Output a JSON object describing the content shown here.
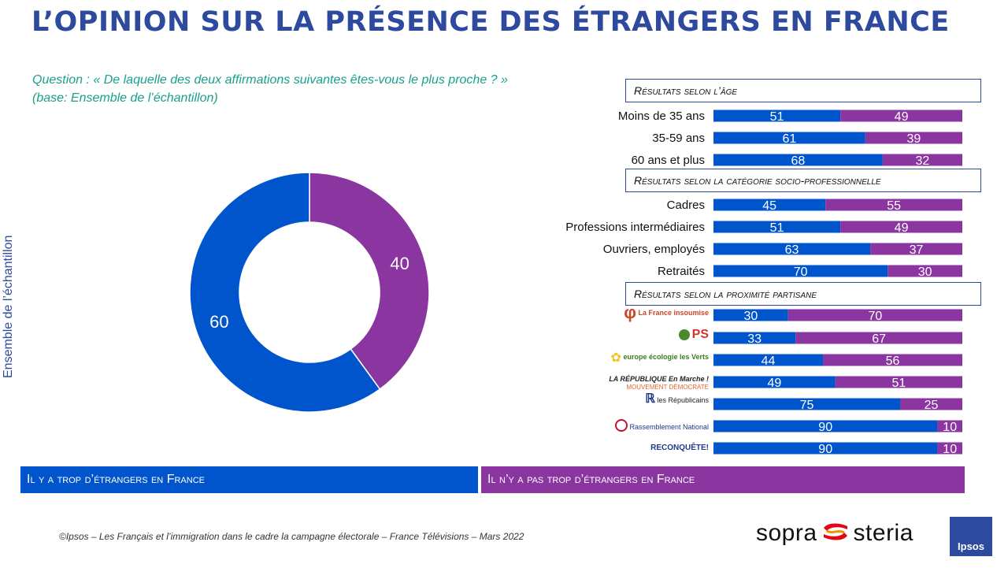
{
  "title": "L’OPINION SUR LA PRÉSENCE DES ÉTRANGERS EN FRANCE",
  "question": "Question : « De laquelle des deux affirmations suivantes êtes-vous le plus proche ? »",
  "base": "(base: Ensemble de l’échantillon)",
  "vertical_label": "Ensemble de l’échantillon",
  "colors": {
    "blue": "#0055cc",
    "purple": "#8a35a0",
    "title": "#2e4a9e"
  },
  "sections": {
    "age": "Résultats selon l’âge",
    "csp": "Résultats selon la catégorie socio-professionnelle",
    "party": "Résultats selon la proximité partisane"
  },
  "legend": {
    "yes": "Il y a trop d’étrangers en France",
    "no": "Il n’y a pas trop d’étrangers en France"
  },
  "logos": {
    "lfi": "La France insoumise",
    "ps": "PS",
    "eelv": "europe écologie les Verts",
    "lrem": "LA RÉPUBLIQUE En Marche !",
    "modem": "MOUVEMENT DÉMOCRATE",
    "lr": "les Républicains",
    "rn": "Rassemblement National",
    "rec": "RECONQUÊTE!"
  },
  "footer": "©Ipsos – Les Français et l’immigration dans le cadre la campagne électorale  – France Télévisions – Mars 2022",
  "brand": {
    "sopra": "sopra",
    "steria": "steria",
    "ipsos": "Ipsos"
  },
  "chart_data": [
    {
      "type": "pie",
      "labels": [
        "Il y a trop d’étrangers en France",
        "Il n’y a pas trop d’étrangers en France"
      ],
      "values": [
        60,
        40
      ]
    },
    {
      "type": "bar",
      "stacked": true,
      "orientation": "horizontal",
      "categories": [
        "Moins de 35 ans",
        "35-59 ans",
        "60 ans et plus",
        "Cadres",
        "Professions intermédiaires",
        "Ouvriers, employés",
        "Retraités",
        "La France insoumise",
        "PS",
        "europe écologie les Verts",
        "En Marche / MoDem",
        "les Républicains",
        "Rassemblement National",
        "Reconquête!"
      ],
      "series": [
        {
          "name": "Il y a trop d’étrangers en France",
          "values": [
            51,
            61,
            68,
            45,
            51,
            63,
            70,
            30,
            33,
            44,
            49,
            75,
            90,
            90
          ]
        },
        {
          "name": "Il n’y a pas trop d’étrangers en France",
          "values": [
            49,
            39,
            32,
            55,
            49,
            37,
            30,
            70,
            67,
            56,
            51,
            25,
            10,
            10
          ]
        }
      ]
    }
  ]
}
